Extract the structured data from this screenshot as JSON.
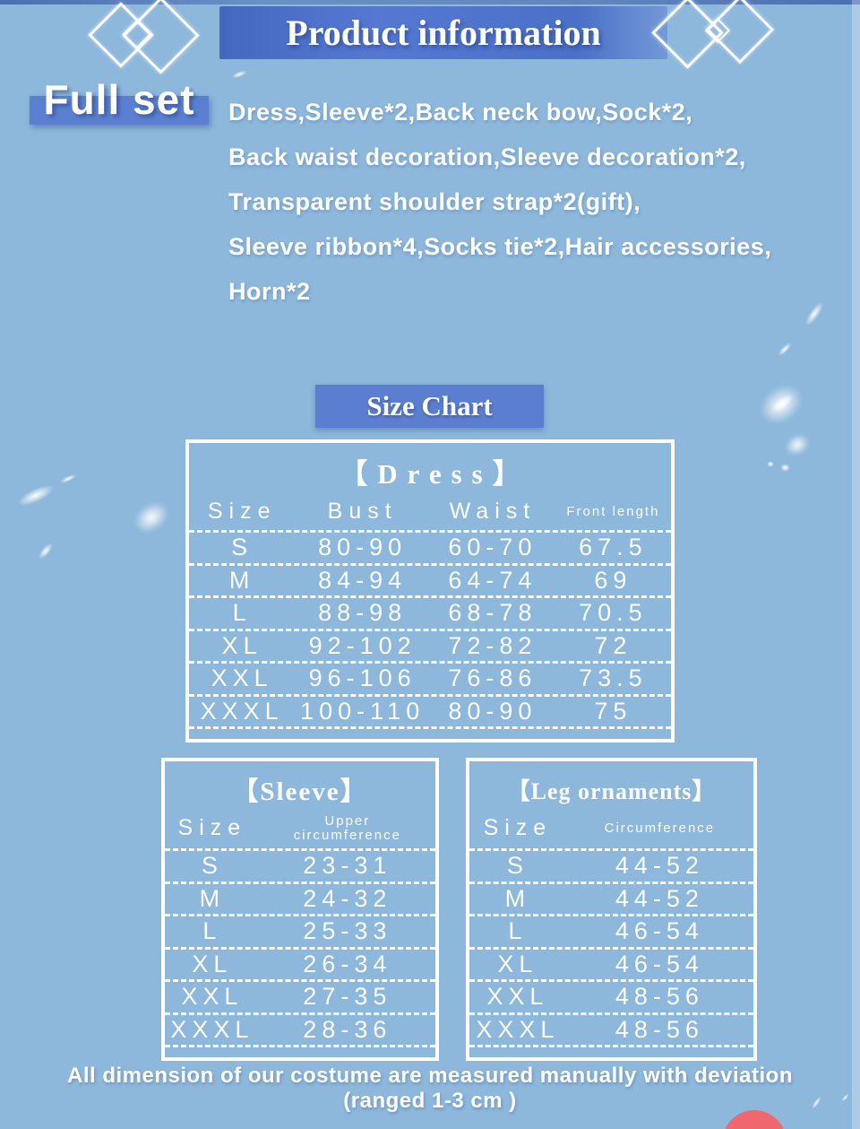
{
  "header": {
    "title": "Product information"
  },
  "full_set": {
    "label": "Full set",
    "lines": [
      "Dress,Sleeve*2,Back neck bow,Sock*2,",
      "Back waist decoration,Sleeve decoration*2,",
      "Transparent shoulder strap*2(gift),",
      "Sleeve ribbon*4,Socks tie*2,Hair accessories,",
      "Horn*2"
    ]
  },
  "size_chart": {
    "heading": "Size Chart"
  },
  "tables": {
    "dress": {
      "title": "【Dress】",
      "headers": [
        "Size",
        "Bust",
        "Waist",
        "Front length"
      ],
      "rows": [
        [
          "S",
          "80-90",
          "60-70",
          "67.5"
        ],
        [
          "M",
          "84-94",
          "64-74",
          "69"
        ],
        [
          "L",
          "88-98",
          "68-78",
          "70.5"
        ],
        [
          "XL",
          "92-102",
          "72-82",
          "72"
        ],
        [
          "XXL",
          "96-106",
          "76-86",
          "73.5"
        ],
        [
          "XXXL",
          "100-110",
          "80-90",
          "75"
        ]
      ]
    },
    "sleeve": {
      "title": "【Sleeve】",
      "headers": [
        "Size",
        "Upper circumference"
      ],
      "rows": [
        [
          "S",
          "23-31"
        ],
        [
          "M",
          "24-32"
        ],
        [
          "L",
          "25-33"
        ],
        [
          "XL",
          "26-34"
        ],
        [
          "XXL",
          "27-35"
        ],
        [
          "XXXL",
          "28-36"
        ]
      ]
    },
    "leg_ornaments": {
      "title": "【Leg ornaments】",
      "headers": [
        "Size",
        "Circumference"
      ],
      "rows": [
        [
          "S",
          "44-52"
        ],
        [
          "M",
          "44-52"
        ],
        [
          "L",
          "46-54"
        ],
        [
          "XL",
          "46-54"
        ],
        [
          "XXL",
          "48-56"
        ],
        [
          "XXXL",
          "48-56"
        ]
      ]
    }
  },
  "footer": {
    "line1": "All dimension of our costume are measured manually with deviation",
    "line2": "(ranged 1-3 cm )"
  },
  "colors": {
    "background": "#8db7db",
    "banner_blue": "#4a70c8",
    "label_blue": "#5b80d2",
    "text_white": "#ffffff",
    "accent_circle_pink": "#ef686e"
  }
}
